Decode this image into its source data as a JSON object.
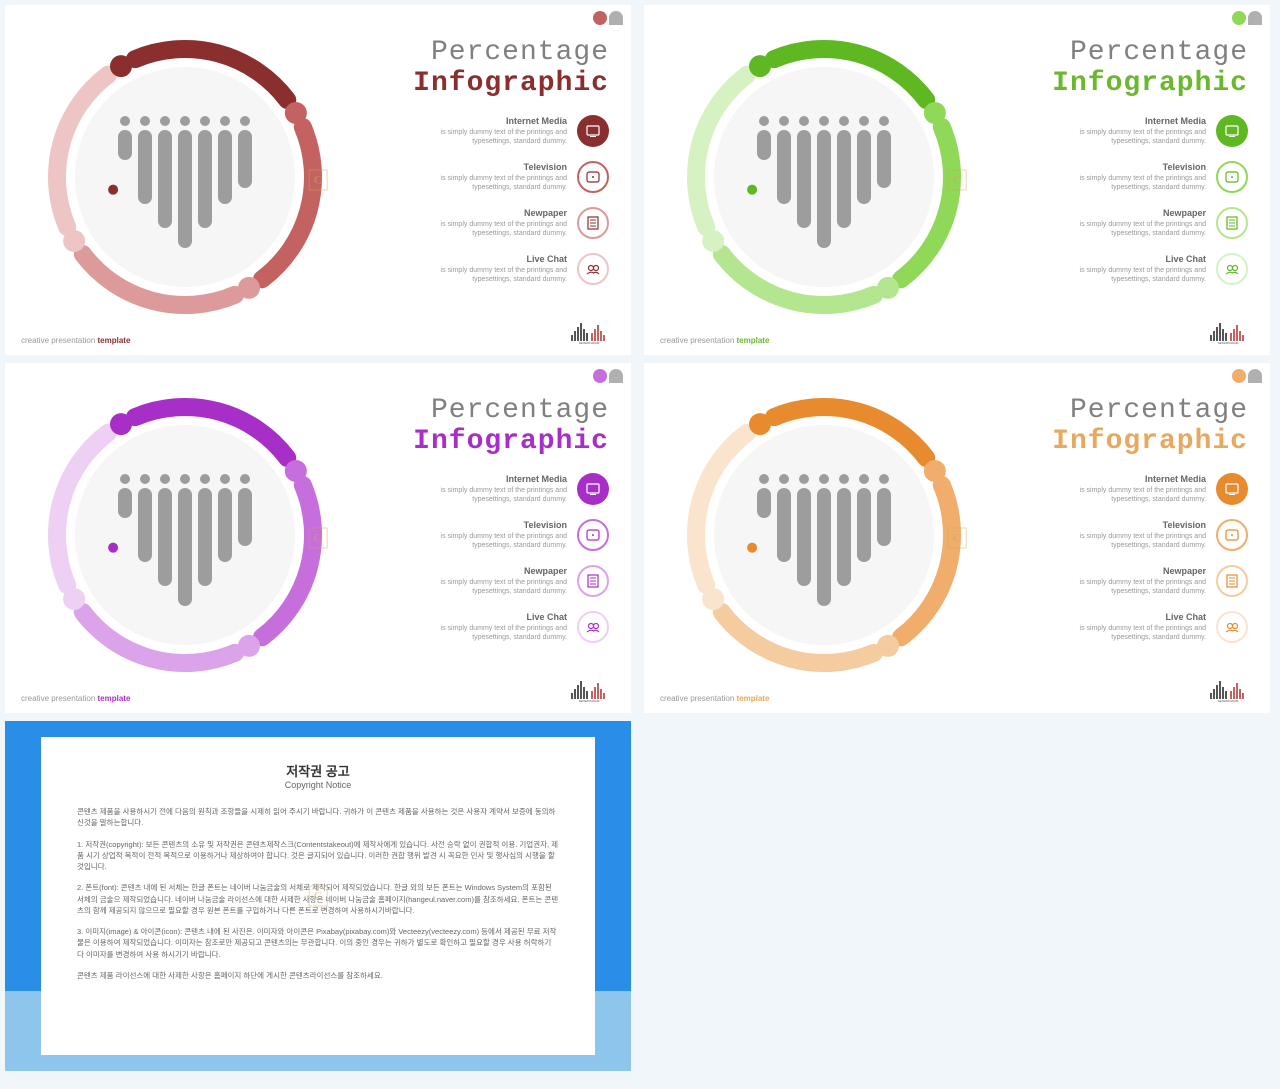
{
  "common": {
    "title1": "Percentage",
    "title2": "Infographic",
    "footer_left_prefix": "creative presentation ",
    "footer_left_template": "template",
    "logo_text": "SEISMOGRAM",
    "header_gray": "#b0b0b0",
    "items": [
      {
        "title": "Internet Media",
        "desc": "is simply dummy text of the printings and typesettings, standard dummy."
      },
      {
        "title": "Television",
        "desc": "is simply dummy text of the printings and typesettings, standard dummy."
      },
      {
        "title": "Newpaper",
        "desc": "is simply dummy text of the printings and typesettings, standard dummy."
      },
      {
        "title": "Live Chat",
        "desc": "is simply dummy text of the printings and typesettings, standard dummy."
      }
    ],
    "watermark": "C"
  },
  "slides": [
    {
      "accent": "#8a2e2e",
      "shades": [
        "#8a2e2e",
        "#c46262",
        "#dd9a9a",
        "#edc5c5"
      ],
      "title2_color": "#8a2e2e",
      "footer_tpl_color": "#8a2e2e"
    },
    {
      "accent": "#5fb822",
      "shades": [
        "#5fb822",
        "#8fd858",
        "#b3e68e",
        "#d6f2c2"
      ],
      "title2_color": "#6bb82e",
      "footer_tpl_color": "#6bb82e"
    },
    {
      "accent": "#a82ec8",
      "shades": [
        "#a82ec8",
        "#c56edc",
        "#dba3e9",
        "#edd0f4"
      ],
      "title2_color": "#a82ec8",
      "footer_tpl_color": "#a82ec8"
    },
    {
      "accent": "#e88a2e",
      "shades": [
        "#e88a2e",
        "#f0ad6b",
        "#f5cba0",
        "#fae4cd"
      ],
      "title2_color": "#e8a85e",
      "footer_tpl_color": "#e8a85e"
    }
  ],
  "ring": {
    "inner_bg": "#f6f6f6",
    "stroke_width": 18,
    "arc_gap_deg": 14,
    "circle_r_dot": 11
  },
  "bars_icon": {
    "color": "#9d9d9d",
    "heights": [
      30,
      74,
      98,
      118,
      98,
      74,
      58
    ],
    "width": 14,
    "gap": 6,
    "dot_r": 5
  },
  "copyright": {
    "title": "저작권 공고",
    "subtitle": "Copyright Notice",
    "para1": "콘텐츠 제품을 사용하시기 전에 다음의 원칙과 조항들을 시제히 읽어 주시기 바랍니다. 귀하가 이 콘텐츠 제품을 사용하는 것은 사용자 계약서 보증에 동의하신것을 말하는합니다.",
    "para2": "1. 저작권(copyright): 보든 콘텐츠의 소유 및 저작권은 콘텐츠제작스크(Contentstakeout)에 제작사에게 있습니다. 사전 승락 없이 권합적 이용. 기업권자, 제품 시기 상업적 목적이 전적 목적으로 이용하거나 제상하여야 합니다. 것은 글지되어 있습니다. 이러한 권합 행위 발견 시 꼭요한 민사 및 행사심의 시행을 할 것입니다.",
    "para3": "2. 폰트(font): 콘텐츠 내에 된 서체는 한글 폰트는 네이버 나눔금술의 서체로 제작되어 제작되었습니다. 한글 외의 보든 폰트는 Windows System의 포함된 서체의 금술으 제작되었습니다. 네이버 나눔금술 라이선스에 대한 사제한 사항은 네이버 나눔금술 홈페이지(hangeul.naver.com)를 참조하세요. 폰트는 콘텐츠의 함께 제공되지 않으므로 필요할 경우 원본 폰트를 구입하거나 다른 폰트로 변경하여 사용하시기바랍니다.",
    "para4": "3. 이미지(image) & 아이콘(icon): 콘텐츠 내에 된 사진은. 이미자와 아이콘은 Pixabay(pixabay.com)와 Vecteezy(vecteezy.com) 등에서 제공된 무료 저작물은 이용하여 제작되었습니다. 이미자는 참조로만 제공되고 콘텐츠의는 무관합니다. 이의 중인 경우는 귀하가 별도로 확인하고 필요할 경우 사용 허락하기 다 이미자를 변경하여 사용 하시기기 바랍니다.",
    "para5": "콘텐츠 제품 라이선스에 대한 사제한 사항은 홈페이지 하단에 게시한 콘텐츠라이선스를 참조하세요."
  }
}
